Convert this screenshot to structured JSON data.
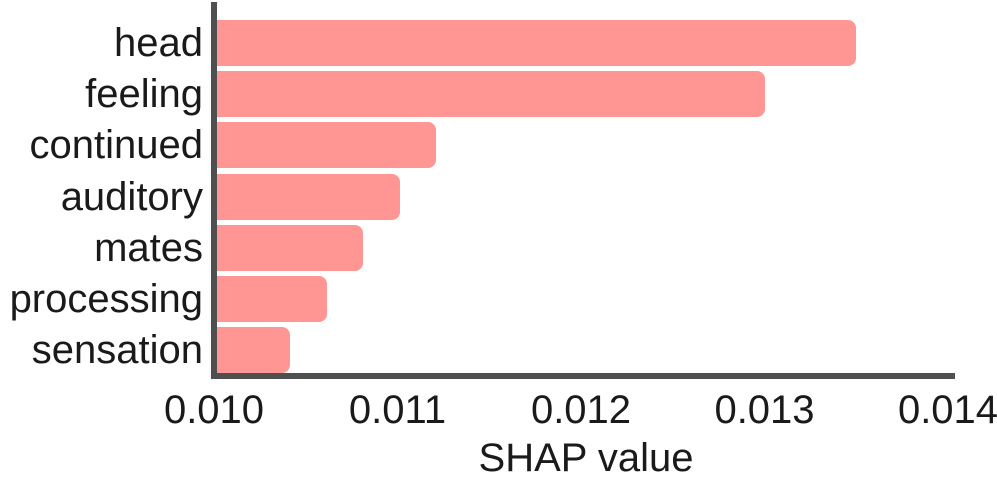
{
  "chart_data": {
    "type": "bar",
    "orientation": "horizontal",
    "title": "",
    "xlabel": "SHAP value",
    "ylabel": "",
    "categories": [
      "head",
      "feeling",
      "continued",
      "auditory",
      "mates",
      "processing",
      "sensation"
    ],
    "values": [
      0.0135,
      0.013,
      0.0112,
      0.011,
      0.0108,
      0.0106,
      0.0104
    ],
    "xticks": {
      "labels": [
        "0.010",
        "0.011",
        "0.012",
        "0.013",
        "0.014"
      ],
      "values": [
        0.01,
        0.011,
        0.012,
        0.013,
        0.014
      ]
    },
    "xlim": [
      0.01,
      0.014
    ],
    "grid": false,
    "legend": null,
    "colors": {
      "bar": "#ff9693",
      "axis": "#4f4f4f",
      "text": "#1a1a1a",
      "background": "#ffffff"
    }
  }
}
